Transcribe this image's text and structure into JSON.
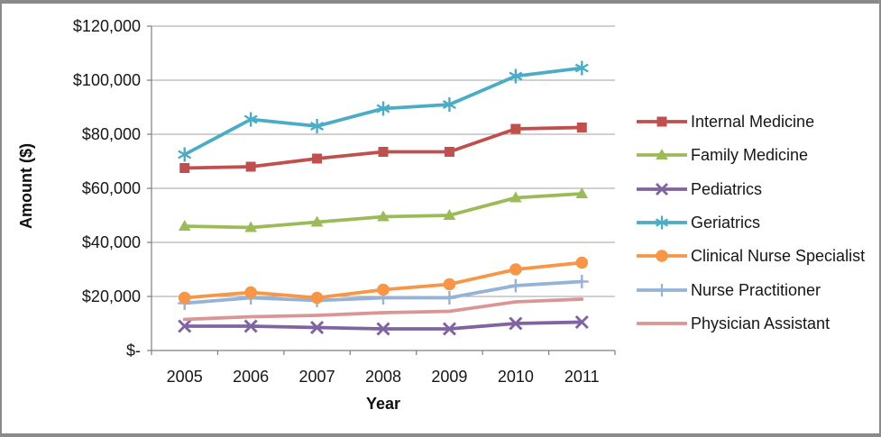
{
  "chart_data": {
    "type": "line",
    "title": "",
    "xlabel": "Year",
    "ylabel": "Amount ($)",
    "categories": [
      "2005",
      "2006",
      "2007",
      "2008",
      "2009",
      "2010",
      "2011"
    ],
    "ylim": [
      0,
      120000
    ],
    "y_tick_step": 20000,
    "y_tick_labels": [
      "$-",
      "$20,000",
      "$40,000",
      "$60,000",
      "$80,000",
      "$100,000",
      "$120,000"
    ],
    "grid": true,
    "legend_position": "right",
    "series": [
      {
        "name": "Internal Medicine",
        "color": "#C0504D",
        "marker": "square",
        "values": [
          67500,
          68000,
          71000,
          73500,
          73500,
          82000,
          82500
        ]
      },
      {
        "name": "Family Medicine",
        "color": "#9BBB59",
        "marker": "triangle",
        "values": [
          46000,
          45500,
          47500,
          49500,
          50000,
          56500,
          58000
        ]
      },
      {
        "name": "Pediatrics",
        "color": "#8064A2",
        "marker": "x",
        "values": [
          9000,
          9000,
          8500,
          8000,
          8000,
          10000,
          10500
        ]
      },
      {
        "name": "Geriatrics",
        "color": "#4BACC6",
        "marker": "asterisk",
        "values": [
          72500,
          85500,
          83000,
          89500,
          91000,
          101500,
          104500
        ]
      },
      {
        "name": "Clinical Nurse Specialist",
        "color": "#F79646",
        "marker": "circle",
        "values": [
          19500,
          21500,
          19500,
          22500,
          24500,
          30000,
          32500
        ]
      },
      {
        "name": "Nurse Practitioner",
        "color": "#95B3D7",
        "marker": "plus",
        "values": [
          17500,
          19500,
          18500,
          19500,
          19500,
          24000,
          25500
        ]
      },
      {
        "name": "Physician Assistant",
        "color": "#D99694",
        "marker": "none",
        "values": [
          11500,
          12500,
          13000,
          14000,
          14500,
          18000,
          19000
        ]
      }
    ],
    "colors": {
      "gridline": "#A3A3A3",
      "axis": "#7F7F7F",
      "tick": "#7F7F7F",
      "text": "#161616",
      "background": "#FFFFFF",
      "frame_border": "#8A8A8A"
    }
  }
}
